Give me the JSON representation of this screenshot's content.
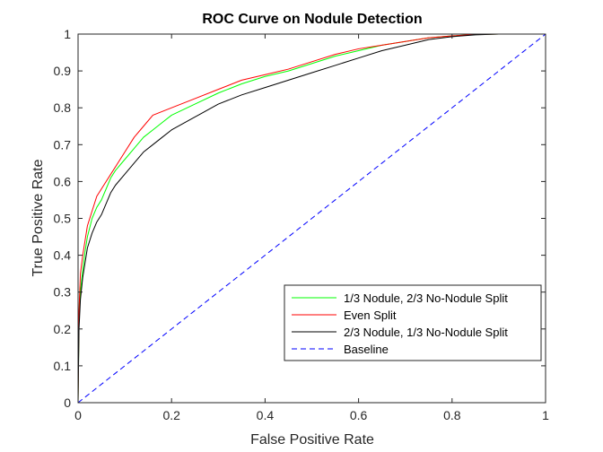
{
  "chart_data": {
    "type": "line",
    "title": "ROC Curve on Nodule Detection",
    "xlabel": "False Positive Rate",
    "ylabel": "True Positive Rate",
    "xlim": [
      0,
      1
    ],
    "ylim": [
      0,
      1
    ],
    "x_ticks": [
      "0",
      "0.2",
      "0.4",
      "0.6",
      "0.8",
      "1"
    ],
    "y_ticks": [
      "0",
      "0.1",
      "0.2",
      "0.3",
      "0.4",
      "0.5",
      "0.6",
      "0.7",
      "0.8",
      "0.9",
      "1"
    ],
    "grid": false,
    "legend_position": "lower-right",
    "series": [
      {
        "name": "1/3 Nodule, 2/3 No-Nodule Split",
        "color": "#00ff00",
        "dash": "solid",
        "points": [
          [
            0,
            0
          ],
          [
            0.002,
            0.22
          ],
          [
            0.005,
            0.3
          ],
          [
            0.01,
            0.36
          ],
          [
            0.015,
            0.41
          ],
          [
            0.02,
            0.45
          ],
          [
            0.03,
            0.5
          ],
          [
            0.04,
            0.53
          ],
          [
            0.05,
            0.55
          ],
          [
            0.06,
            0.58
          ],
          [
            0.07,
            0.61
          ],
          [
            0.08,
            0.63
          ],
          [
            0.1,
            0.66
          ],
          [
            0.12,
            0.69
          ],
          [
            0.14,
            0.72
          ],
          [
            0.16,
            0.74
          ],
          [
            0.18,
            0.76
          ],
          [
            0.2,
            0.78
          ],
          [
            0.25,
            0.81
          ],
          [
            0.3,
            0.84
          ],
          [
            0.35,
            0.865
          ],
          [
            0.4,
            0.885
          ],
          [
            0.45,
            0.9
          ],
          [
            0.5,
            0.92
          ],
          [
            0.55,
            0.94
          ],
          [
            0.6,
            0.955
          ],
          [
            0.65,
            0.97
          ],
          [
            0.7,
            0.98
          ],
          [
            0.75,
            0.99
          ],
          [
            0.8,
            0.995
          ],
          [
            0.85,
            0.999
          ],
          [
            0.9,
            1.0
          ],
          [
            1.0,
            1.0
          ]
        ]
      },
      {
        "name": "Even Split",
        "color": "#ff0000",
        "dash": "solid",
        "points": [
          [
            0,
            0
          ],
          [
            0.002,
            0.25
          ],
          [
            0.005,
            0.35
          ],
          [
            0.01,
            0.4
          ],
          [
            0.015,
            0.44
          ],
          [
            0.02,
            0.48
          ],
          [
            0.03,
            0.52
          ],
          [
            0.04,
            0.56
          ],
          [
            0.05,
            0.58
          ],
          [
            0.06,
            0.6
          ],
          [
            0.07,
            0.62
          ],
          [
            0.08,
            0.64
          ],
          [
            0.1,
            0.68
          ],
          [
            0.12,
            0.72
          ],
          [
            0.14,
            0.75
          ],
          [
            0.16,
            0.78
          ],
          [
            0.18,
            0.79
          ],
          [
            0.2,
            0.8
          ],
          [
            0.25,
            0.825
          ],
          [
            0.3,
            0.85
          ],
          [
            0.35,
            0.875
          ],
          [
            0.4,
            0.89
          ],
          [
            0.45,
            0.905
          ],
          [
            0.5,
            0.925
          ],
          [
            0.55,
            0.945
          ],
          [
            0.6,
            0.96
          ],
          [
            0.65,
            0.97
          ],
          [
            0.7,
            0.98
          ],
          [
            0.75,
            0.99
          ],
          [
            0.8,
            0.995
          ],
          [
            0.85,
            0.999
          ],
          [
            0.9,
            1.0
          ],
          [
            1.0,
            1.0
          ]
        ]
      },
      {
        "name": "2/3 Nodule, 1/3 No-Nodule Split",
        "color": "#000000",
        "dash": "solid",
        "points": [
          [
            0,
            0
          ],
          [
            0.002,
            0.2
          ],
          [
            0.005,
            0.28
          ],
          [
            0.01,
            0.34
          ],
          [
            0.015,
            0.38
          ],
          [
            0.02,
            0.42
          ],
          [
            0.03,
            0.46
          ],
          [
            0.04,
            0.49
          ],
          [
            0.05,
            0.51
          ],
          [
            0.06,
            0.54
          ],
          [
            0.07,
            0.57
          ],
          [
            0.08,
            0.59
          ],
          [
            0.1,
            0.62
          ],
          [
            0.12,
            0.65
          ],
          [
            0.14,
            0.68
          ],
          [
            0.16,
            0.7
          ],
          [
            0.18,
            0.72
          ],
          [
            0.2,
            0.74
          ],
          [
            0.25,
            0.775
          ],
          [
            0.3,
            0.81
          ],
          [
            0.35,
            0.835
          ],
          [
            0.4,
            0.855
          ],
          [
            0.45,
            0.875
          ],
          [
            0.5,
            0.895
          ],
          [
            0.55,
            0.915
          ],
          [
            0.6,
            0.935
          ],
          [
            0.65,
            0.955
          ],
          [
            0.7,
            0.97
          ],
          [
            0.75,
            0.985
          ],
          [
            0.8,
            0.993
          ],
          [
            0.85,
            0.998
          ],
          [
            0.9,
            1.0
          ],
          [
            1.0,
            1.0
          ]
        ]
      },
      {
        "name": "Baseline",
        "color": "#0000ff",
        "dash": "dashed",
        "points": [
          [
            0,
            0
          ],
          [
            1,
            1
          ]
        ]
      }
    ]
  }
}
